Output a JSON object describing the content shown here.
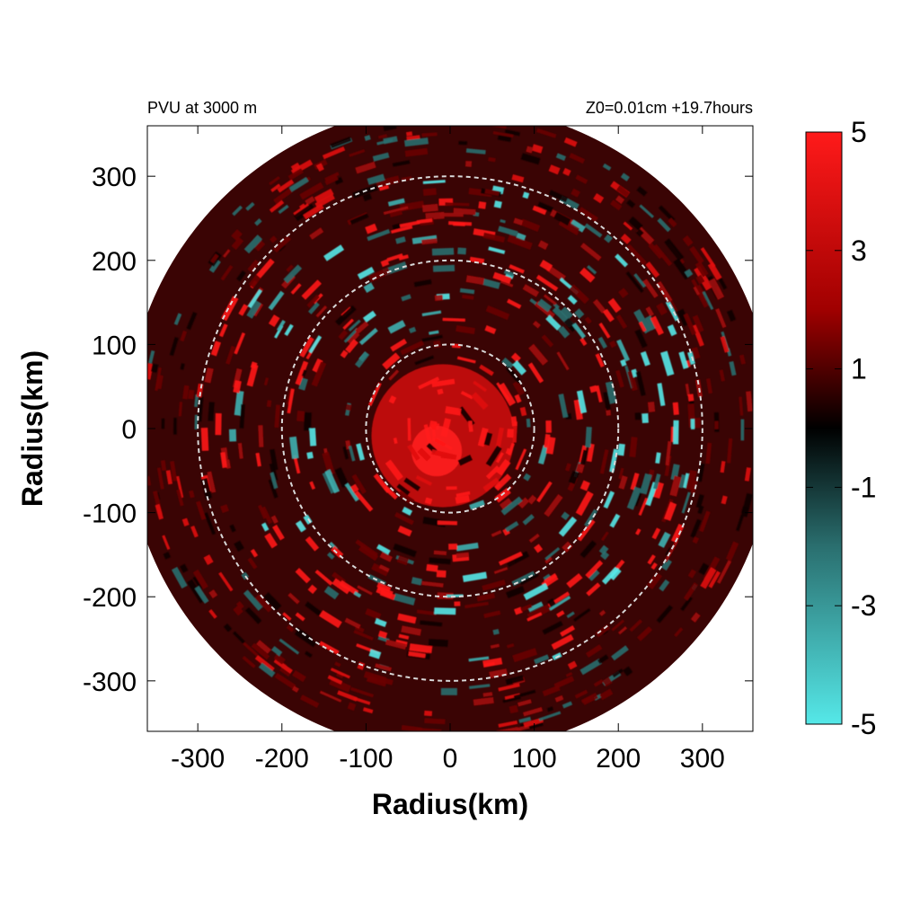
{
  "chart_data": {
    "type": "heatmap",
    "title_left": "PVU at  3000 m",
    "title_right": "Z0=0.01cm  +19.7hours",
    "xlabel": "Radius(km)",
    "ylabel": "Radius(km)",
    "xlim": [
      -360,
      360
    ],
    "ylim": [
      -360,
      360
    ],
    "x_ticks": [
      -300,
      -200,
      -100,
      0,
      100,
      200,
      300
    ],
    "y_ticks": [
      300,
      200,
      100,
      0,
      -100,
      -200,
      -300
    ],
    "reference_circles_km": [
      100,
      200,
      300
    ],
    "domain_radius_km": 385,
    "colorbar": {
      "range": [
        -5,
        5
      ],
      "ticks": [
        5,
        3,
        1,
        -1,
        -3,
        -5
      ],
      "colors": {
        "max": "#ff1a1a",
        "mid_positive": "#7a0000",
        "zero": "#000000",
        "mid_negative": "#2a6f6f",
        "min": "#55e8e8"
      }
    },
    "colors": {
      "background_field": "#3a0404",
      "reference_circle": "#d8d8d8"
    }
  }
}
